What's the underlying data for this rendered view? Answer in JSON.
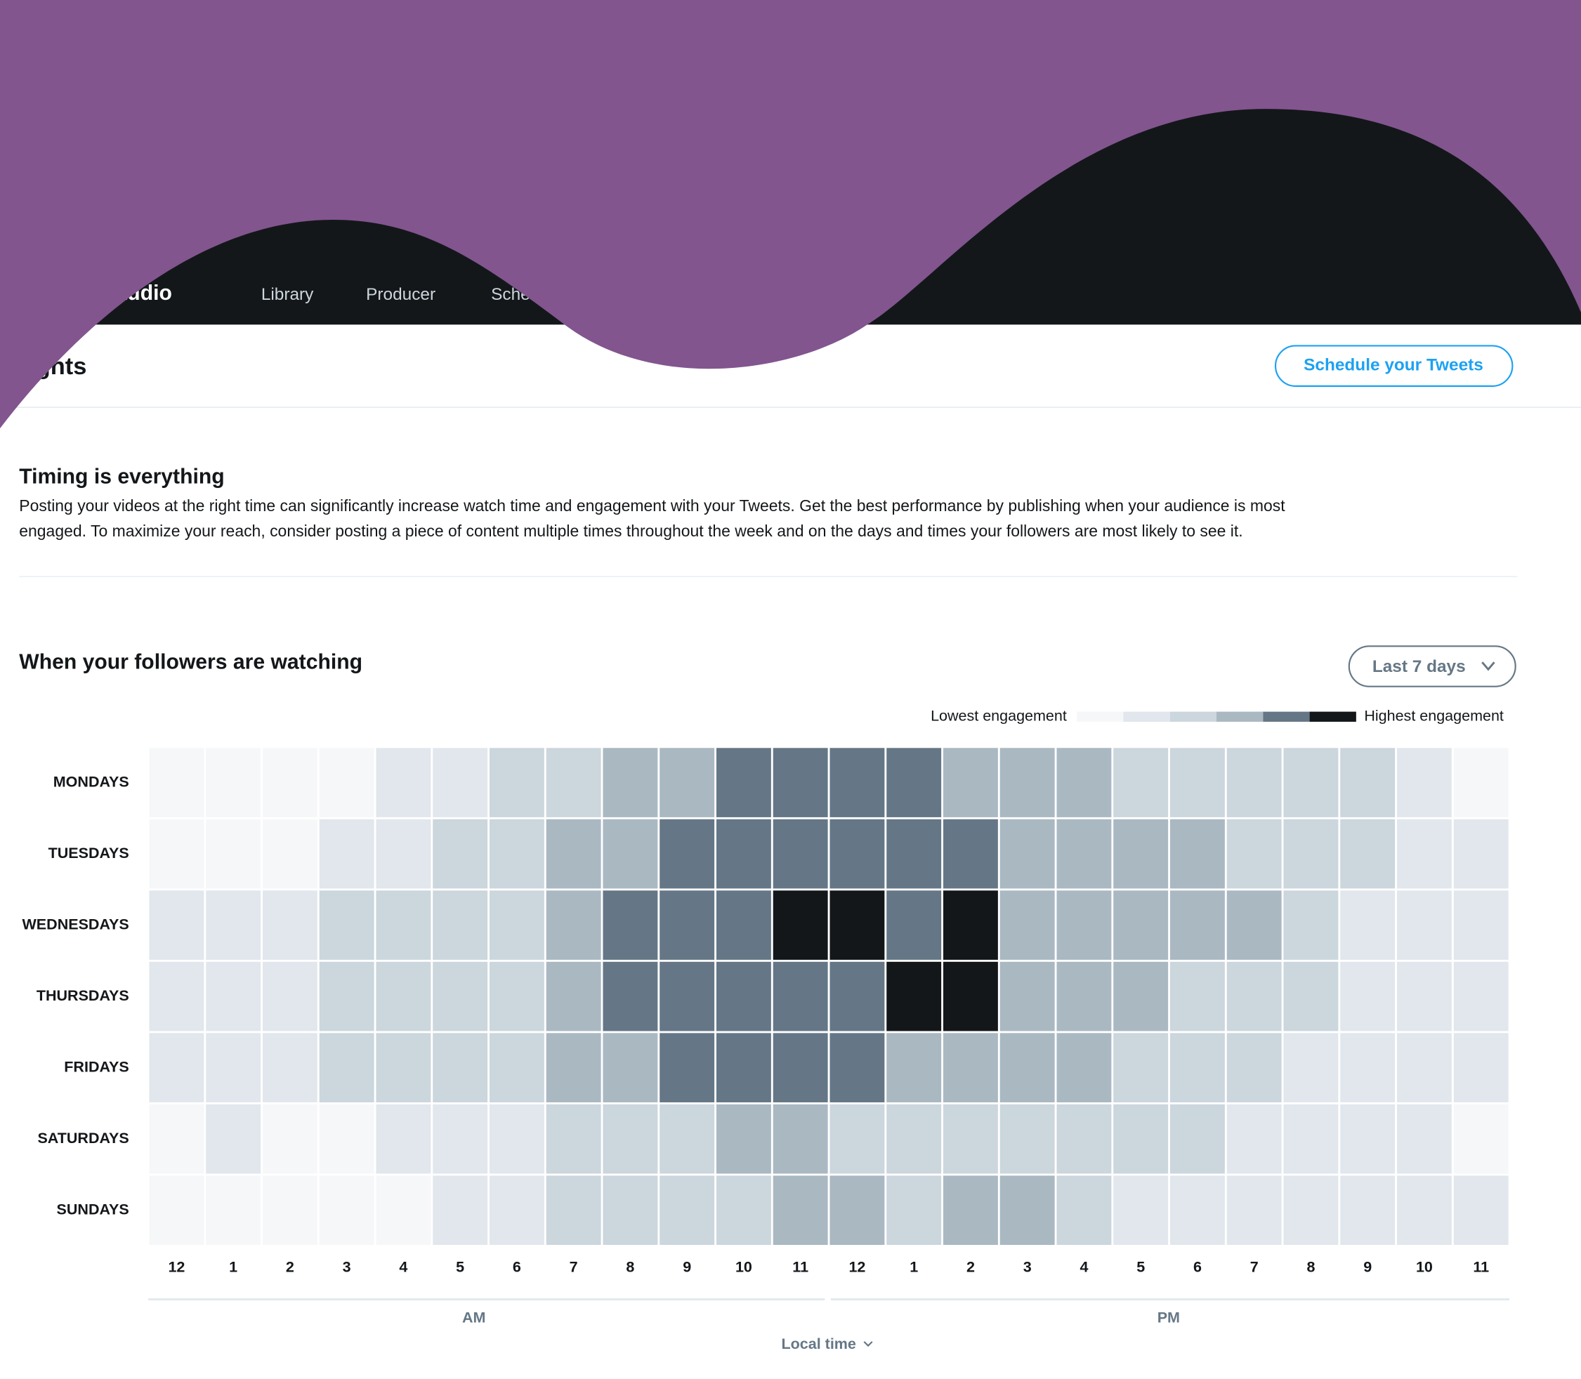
{
  "nav": {
    "brand": "Media Studio",
    "items": [
      "Library",
      "Producer",
      "Scheduler"
    ]
  },
  "header": {
    "title": "Insights",
    "button": "Schedule your Tweets"
  },
  "intro": {
    "title": "Timing is everything",
    "lines": [
      "Posting your videos at the right time can significantly increase watch time and engagement with your Tweets. Get the best performance by publishing when your audience is most",
      "engaged. To maximize your reach, consider posting a piece of content multiple times throughout the week and on the days and times your followers are most likely to see it."
    ]
  },
  "heatmap": {
    "title": "When your followers are watching",
    "range_button": "Last 7 days",
    "legend_low": "Lowest engagement",
    "legend_high": "Highest engagement",
    "colors": [
      "#f5f7f9",
      "#e1e7ec",
      "#ccd6dd",
      "#aab8c2",
      "#657786",
      "#14171a"
    ],
    "rows": [
      "MONDAYS",
      "TUESDAYS",
      "WEDNESDAYS",
      "THURSDAYS",
      "FRIDAYS",
      "SATURDAYS",
      "SUNDAYS"
    ],
    "columns": [
      "12",
      "1",
      "2",
      "3",
      "4",
      "5",
      "6",
      "7",
      "8",
      "9",
      "10",
      "11",
      "12",
      "1",
      "2",
      "3",
      "4",
      "5",
      "6",
      "7",
      "8",
      "9",
      "10",
      "11"
    ],
    "levels": [
      [
        1,
        1,
        1,
        1,
        2,
        2,
        3,
        3,
        4,
        4,
        5,
        5,
        5,
        5,
        4,
        4,
        4,
        3,
        3,
        3,
        3,
        3,
        2,
        1
      ],
      [
        1,
        1,
        1,
        2,
        2,
        3,
        3,
        4,
        4,
        5,
        5,
        5,
        5,
        5,
        5,
        4,
        4,
        4,
        4,
        3,
        3,
        3,
        2,
        2
      ],
      [
        2,
        2,
        2,
        3,
        3,
        3,
        3,
        4,
        5,
        5,
        5,
        6,
        6,
        5,
        6,
        4,
        4,
        4,
        4,
        4,
        3,
        2,
        2,
        2
      ],
      [
        2,
        2,
        2,
        3,
        3,
        3,
        3,
        4,
        5,
        5,
        5,
        5,
        5,
        6,
        6,
        4,
        4,
        4,
        3,
        3,
        3,
        2,
        2,
        2
      ],
      [
        2,
        2,
        2,
        3,
        3,
        3,
        3,
        4,
        4,
        5,
        5,
        5,
        5,
        4,
        4,
        4,
        4,
        3,
        3,
        3,
        2,
        2,
        2,
        2
      ],
      [
        1,
        2,
        1,
        1,
        2,
        2,
        2,
        3,
        3,
        3,
        4,
        4,
        3,
        3,
        3,
        3,
        3,
        3,
        3,
        2,
        2,
        2,
        2,
        1
      ],
      [
        1,
        1,
        1,
        1,
        1,
        2,
        2,
        3,
        3,
        3,
        3,
        4,
        4,
        3,
        4,
        4,
        3,
        2,
        2,
        2,
        2,
        2,
        2,
        2
      ]
    ],
    "am": "AM",
    "pm": "PM",
    "time_zone": "Local time"
  }
}
